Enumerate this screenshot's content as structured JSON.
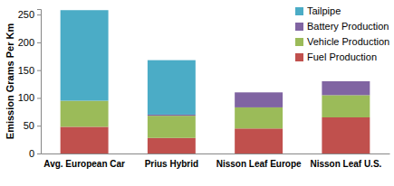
{
  "chart_data": {
    "type": "bar",
    "stacked": true,
    "y_label": "Emission Grams Per Km",
    "categories": [
      "Avg. European Car",
      "Prius Hybrid",
      "Nisson Leaf Europe",
      "Nisson Leaf U.S."
    ],
    "series": [
      {
        "name": "Fuel Production",
        "color": "#c0504d",
        "values": [
          48,
          28,
          45,
          65
        ]
      },
      {
        "name": "Vehicle Production",
        "color": "#9bbb59",
        "values": [
          47,
          40,
          38,
          40
        ]
      },
      {
        "name": "Battery Production",
        "color": "#8064a2",
        "values": [
          0,
          2,
          27,
          25
        ]
      },
      {
        "name": "Tailpipe",
        "color": "#4bacc6",
        "values": [
          163,
          98,
          0,
          0
        ]
      }
    ],
    "ylim": [
      0,
      260
    ],
    "yticks": [
      0,
      50,
      100,
      150,
      200,
      250
    ],
    "grid": false,
    "legend": "upper right"
  }
}
